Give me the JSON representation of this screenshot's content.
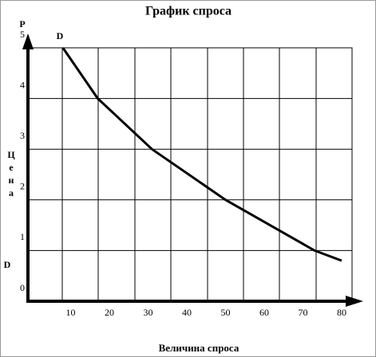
{
  "chart_data": {
    "type": "line",
    "title": "График спроса",
    "x_label": "Величина спроса",
    "y_label": [
      "Ц",
      "е",
      "н",
      "а"
    ],
    "y_axis_symbol": "P",
    "curve_label": "D",
    "side_label": "D",
    "x": [
      8,
      17,
      31,
      50,
      73,
      80
    ],
    "values": [
      5,
      4,
      3,
      2,
      1,
      0.8
    ],
    "color": "#000000",
    "xlim": [
      0,
      83
    ],
    "ylim": [
      0,
      5
    ],
    "xticks": [
      10,
      20,
      30,
      40,
      50,
      60,
      70,
      80
    ],
    "yticks": [
      0,
      1,
      2,
      3,
      4,
      5
    ],
    "grid": true
  }
}
